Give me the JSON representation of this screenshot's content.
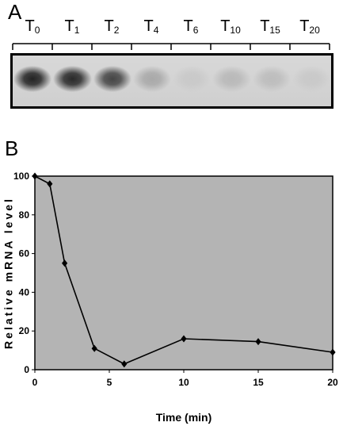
{
  "panels": {
    "a_label": "A",
    "b_label": "B"
  },
  "blot": {
    "lanes": [
      {
        "label": "T",
        "sub": "0",
        "intensity": 0.95
      },
      {
        "label": "T",
        "sub": "1",
        "intensity": 0.92
      },
      {
        "label": "T",
        "sub": "2",
        "intensity": 0.78
      },
      {
        "label": "T",
        "sub": "4",
        "intensity": 0.28
      },
      {
        "label": "T",
        "sub": "6",
        "intensity": 0.12
      },
      {
        "label": "T",
        "sub": "10",
        "intensity": 0.2
      },
      {
        "label": "T",
        "sub": "15",
        "intensity": 0.18
      },
      {
        "label": "T",
        "sub": "20",
        "intensity": 0.12
      }
    ]
  },
  "chart_data": {
    "type": "line",
    "xlabel": "Time (min)",
    "ylabel": "Relative mRNA level",
    "xlim": [
      0,
      20
    ],
    "ylim": [
      0,
      100
    ],
    "xticks": [
      0,
      5,
      10,
      15,
      20
    ],
    "yticks": [
      0,
      20,
      40,
      60,
      80,
      100
    ],
    "x": [
      0,
      1,
      2,
      4,
      6,
      10,
      15,
      20
    ],
    "y": [
      100,
      96,
      55,
      11,
      3,
      16,
      14.5,
      9
    ],
    "marker": "diamond",
    "plot_background": "#b4b4b4",
    "line_color": "#000000",
    "grid": false,
    "legend": "none"
  }
}
